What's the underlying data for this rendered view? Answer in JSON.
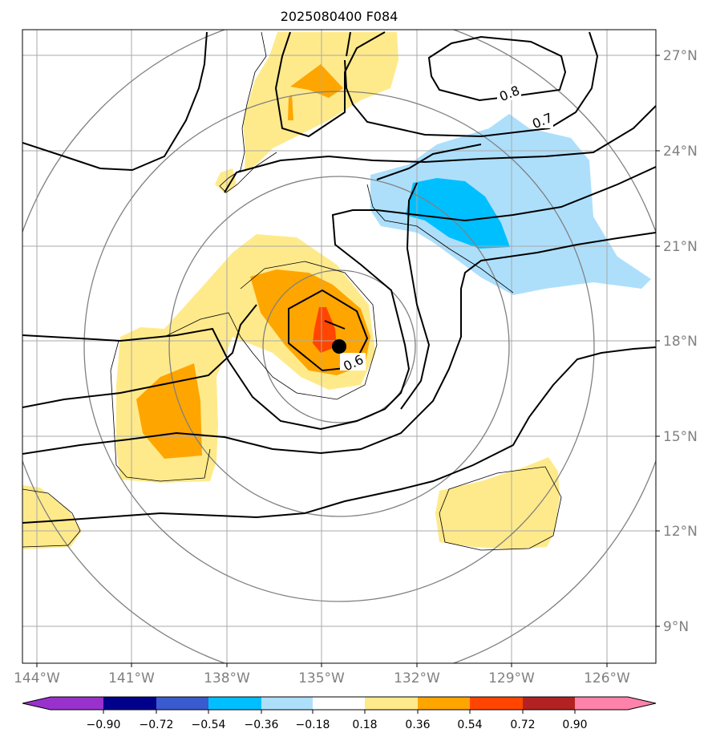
{
  "title": "2025080400 F084",
  "colors": {
    "cb": [
      "#9932CC",
      "#00008B",
      "#3A5BCF",
      "#00BFFF",
      "#ADDFFB",
      "#FFFFFF",
      "#FFEA8B",
      "#FFA500",
      "#FF4500",
      "#B22222",
      "#FF82AB"
    ],
    "lightblue": "#ADDFFB",
    "blue": "#00BFFF",
    "lightyellow": "#FFEA8B",
    "orange": "#FFA500",
    "redorange": "#FF4500",
    "grid": "#aaaaaa",
    "circle": "#808080",
    "axis_label": "#808080"
  },
  "axes": {
    "lon_labels": [
      "144°W",
      "141°W",
      "138°W",
      "135°W",
      "132°W",
      "129°W",
      "126°W"
    ],
    "lat_labels": [
      "27°N",
      "24°N",
      "21°N",
      "18°N",
      "15°N",
      "12°N",
      "9°N"
    ]
  },
  "contour_labels": [
    "0.8",
    "0.7",
    "0.6"
  ],
  "storm_center": {
    "lon": -134.5,
    "lat": 17.8
  },
  "colorbar": {
    "tick_labels": [
      "−0.90",
      "−0.72",
      "−0.54",
      "−0.36",
      "−0.18",
      "0.18",
      "0.36",
      "0.54",
      "0.72",
      "0.90"
    ]
  }
}
